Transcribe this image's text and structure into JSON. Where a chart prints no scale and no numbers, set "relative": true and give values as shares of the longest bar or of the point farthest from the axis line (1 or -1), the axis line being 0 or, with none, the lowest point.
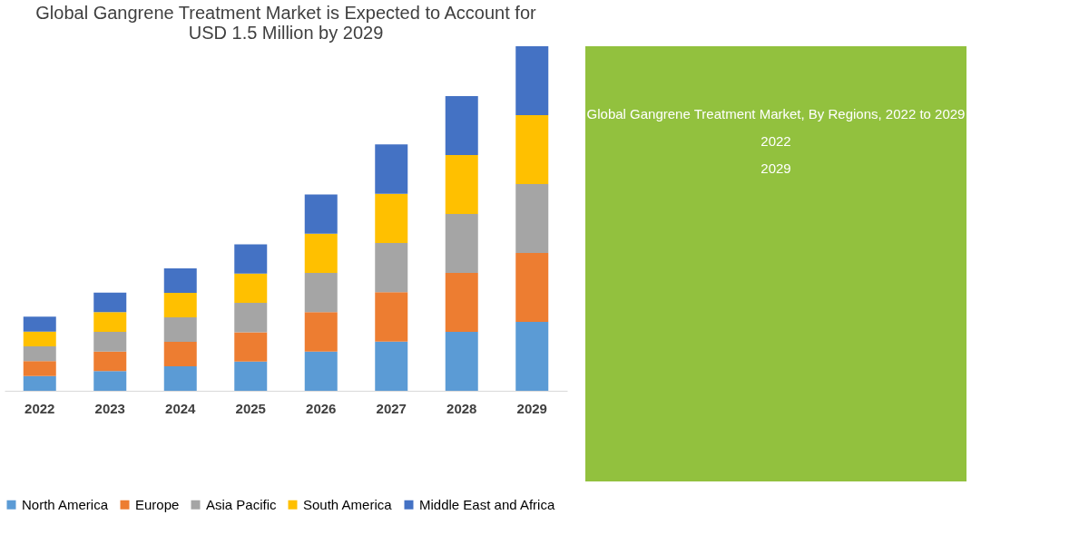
{
  "chart_data": {
    "type": "bar",
    "stacked": true,
    "relative": true,
    "title": [
      "Global Gangrene Treatment Market is Expected to Account for",
      "USD 1.5 Million by 2029"
    ],
    "categories": [
      "2022",
      "2023",
      "2024",
      "2025",
      "2026",
      "2027",
      "2028",
      "2029"
    ],
    "series": [
      {
        "name": "North America",
        "color": "#5b9bd5",
        "values": [
          0.043,
          0.057,
          0.071,
          0.085,
          0.114,
          0.143,
          0.171,
          0.2
        ]
      },
      {
        "name": "Europe",
        "color": "#ed7d31",
        "values": [
          0.043,
          0.057,
          0.071,
          0.085,
          0.114,
          0.143,
          0.171,
          0.2
        ]
      },
      {
        "name": "Asia Pacific",
        "color": "#a5a5a5",
        "values": [
          0.043,
          0.057,
          0.071,
          0.085,
          0.114,
          0.143,
          0.171,
          0.2
        ]
      },
      {
        "name": "South America",
        "color": "#ffc000",
        "values": [
          0.043,
          0.057,
          0.071,
          0.085,
          0.114,
          0.143,
          0.171,
          0.2
        ]
      },
      {
        "name": "Middle East and Africa",
        "color": "#4472c4",
        "values": [
          0.043,
          0.057,
          0.071,
          0.085,
          0.114,
          0.143,
          0.171,
          0.2
        ]
      }
    ],
    "annotations": [
      "Global Gangrene Treatment Market, By Regions, 2022 to 2029",
      "2022",
      "2029"
    ],
    "legend": "bottom",
    "grid": false
  }
}
